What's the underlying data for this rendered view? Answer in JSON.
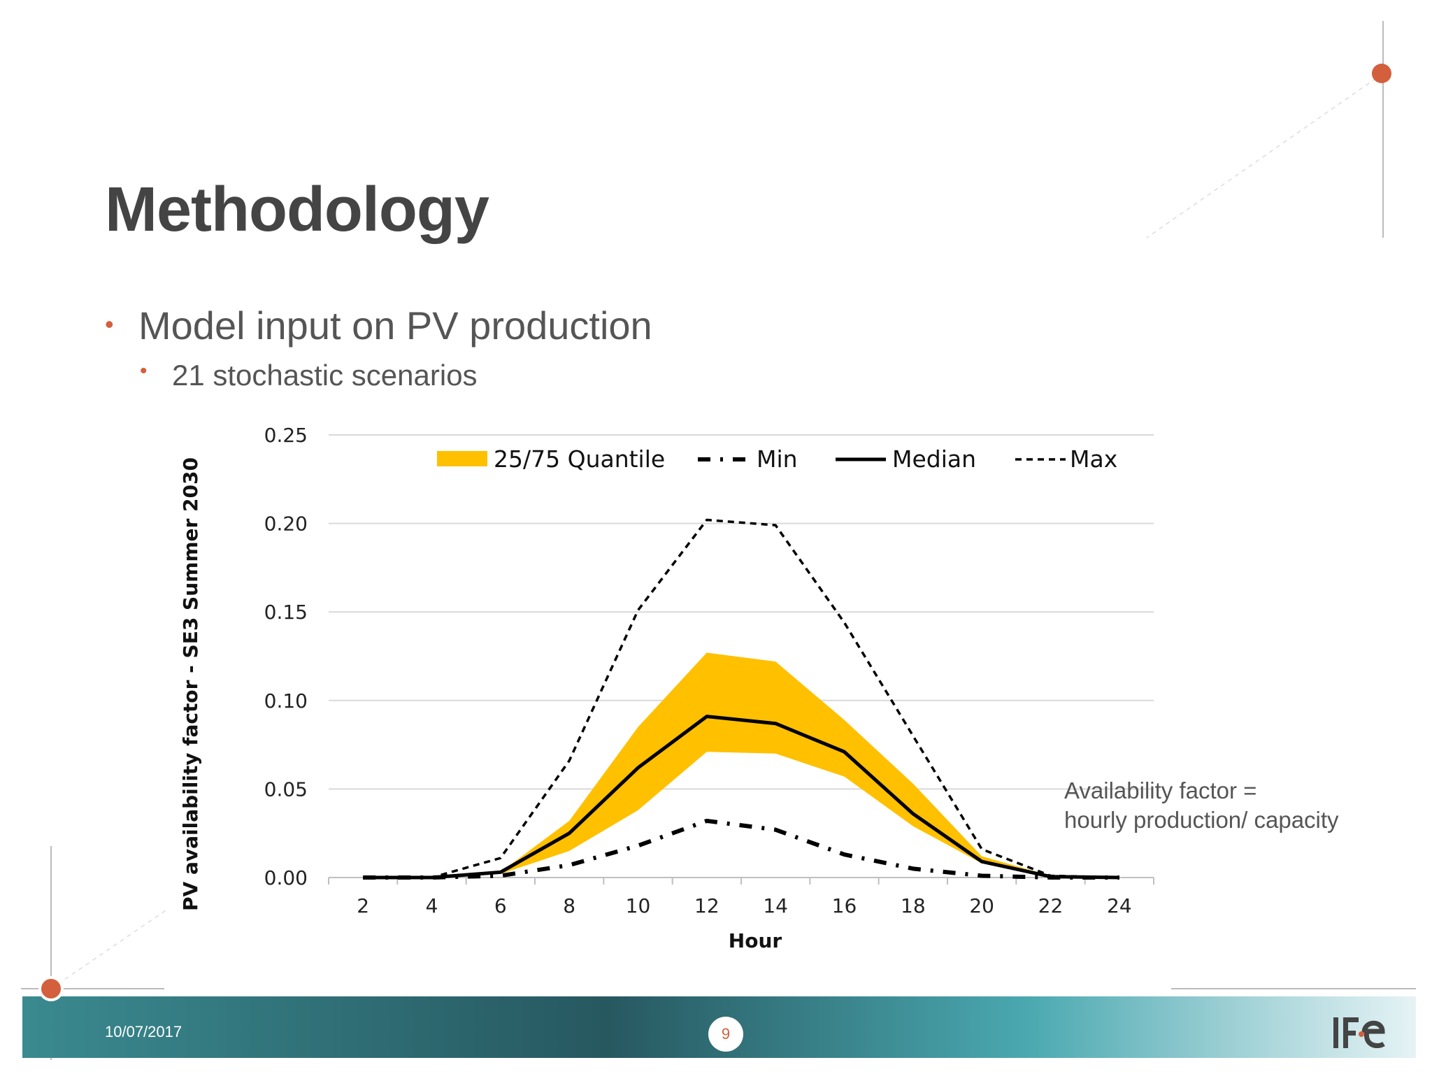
{
  "slide": {
    "title": "Methodology",
    "bullet1": "Model input on PV production",
    "bullet2": "21 stochastic scenarios",
    "note_line1": "Availability factor =",
    "note_line2": "hourly production/ capacity",
    "date": "10/07/2017",
    "page": "9",
    "accent_color": "#d35f3c",
    "logo_icon": "ife-logo-icon"
  },
  "chart_data": {
    "type": "line",
    "xlabel": "Hour",
    "ylabel": "PV availability factor - SE3 Summer 2030",
    "x": [
      2,
      4,
      6,
      8,
      10,
      12,
      14,
      16,
      18,
      20,
      22,
      24
    ],
    "xticks": [
      "2",
      "4",
      "6",
      "8",
      "10",
      "12",
      "14",
      "16",
      "18",
      "20",
      "22",
      "24"
    ],
    "yticks": [
      "0.00",
      "0.05",
      "0.10",
      "0.15",
      "0.20",
      "0.25"
    ],
    "ylim": [
      0,
      0.25
    ],
    "grid": true,
    "legend_position": "top",
    "band": {
      "name": "25/75 Quantile",
      "color": "#ffc000",
      "lower": [
        0,
        0,
        0.002,
        0.015,
        0.038,
        0.071,
        0.07,
        0.057,
        0.029,
        0.008,
        0.0005,
        0
      ],
      "upper": [
        0,
        0,
        0.003,
        0.032,
        0.085,
        0.127,
        0.122,
        0.089,
        0.053,
        0.012,
        0.001,
        0
      ]
    },
    "series": [
      {
        "name": "Min",
        "style": "dashdot",
        "values": [
          0,
          0,
          0.001,
          0.007,
          0.018,
          0.032,
          0.027,
          0.013,
          0.005,
          0.001,
          0,
          0
        ]
      },
      {
        "name": "Median",
        "style": "solid",
        "values": [
          0,
          0,
          0.003,
          0.025,
          0.062,
          0.091,
          0.087,
          0.071,
          0.036,
          0.009,
          0.0005,
          0
        ]
      },
      {
        "name": "Max",
        "style": "dashed",
        "values": [
          0,
          0,
          0.011,
          0.066,
          0.151,
          0.202,
          0.199,
          0.144,
          0.08,
          0.016,
          0.001,
          0
        ]
      }
    ]
  }
}
